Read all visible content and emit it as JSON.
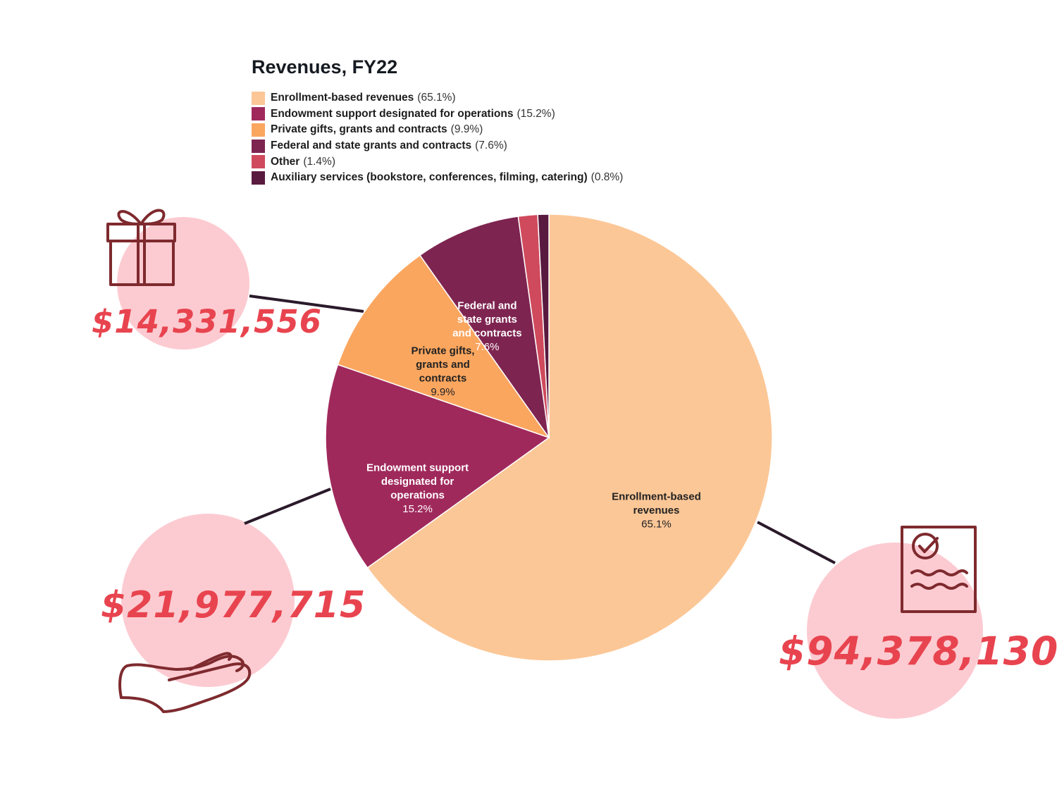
{
  "chart_data": {
    "type": "pie",
    "title": "Revenues, FY22",
    "slices": [
      {
        "label": "Enrollment-based revenues",
        "chart_label": [
          "Enrollment-based",
          "revenues"
        ],
        "value": 65.1,
        "value_label": "65.1%",
        "color": "#fcc797",
        "text_color": "#222222"
      },
      {
        "label": "Endowment support designated for operations",
        "chart_label": [
          "Endowment support",
          "designated for",
          "operations"
        ],
        "value": 15.2,
        "value_label": "15.2%",
        "color": "#a0295c",
        "text_color": "#ffffff"
      },
      {
        "label": "Private gifts, grants and contracts",
        "chart_label": [
          "Private gifts,",
          "grants and",
          "contracts"
        ],
        "value": 9.9,
        "value_label": "9.9%",
        "color": "#fba65f",
        "text_color": "#222222"
      },
      {
        "label": "Federal and state grants and contracts",
        "chart_label": [
          "Federal and",
          "state grants",
          "and contracts"
        ],
        "value": 7.6,
        "value_label": "7.6%",
        "color": "#7e2450",
        "text_color": "#ffffff"
      },
      {
        "label": "Other",
        "chart_label": [],
        "value": 1.4,
        "value_label": "1.4%",
        "color": "#cf4a5c",
        "text_color": "#ffffff"
      },
      {
        "label": "Auxiliary services (bookstore, conferences, filming, catering)",
        "chart_label": [],
        "value": 0.8,
        "value_label": "0.8%",
        "color": "#5a1a3f",
        "text_color": "#ffffff"
      }
    ],
    "legend": [
      {
        "label": "Enrollment-based revenues",
        "pct": "(65.1%)",
        "color": "#fcc797"
      },
      {
        "label": "Endowment support designated for operations",
        "pct": "(15.2%)",
        "color": "#a0295c"
      },
      {
        "label": "Private gifts, grants and contracts",
        "pct": "(9.9%)",
        "color": "#fba65f"
      },
      {
        "label": "Federal and state grants and contracts",
        "pct": "(7.6%)",
        "color": "#7e2450"
      },
      {
        "label": "Other",
        "pct": "(1.4%)",
        "color": "#cf4a5c"
      },
      {
        "label": "Auxiliary services (bookstore, conferences, filming, catering)",
        "pct": "(0.8%)",
        "color": "#5a1a3f"
      }
    ],
    "legend_position": "top"
  },
  "callouts": [
    {
      "amount": "$14,331,556",
      "icon": "gift-icon"
    },
    {
      "amount": "$21,977,715",
      "icon": "hand-icon"
    },
    {
      "amount": "$94,378,130",
      "icon": "document-check-icon"
    }
  ],
  "colors": {
    "callout_circle": "#fccbd1",
    "amount_text": "#e8444f",
    "icon_stroke": "#7e2a2e",
    "leader_line": "#2a1a2a"
  }
}
